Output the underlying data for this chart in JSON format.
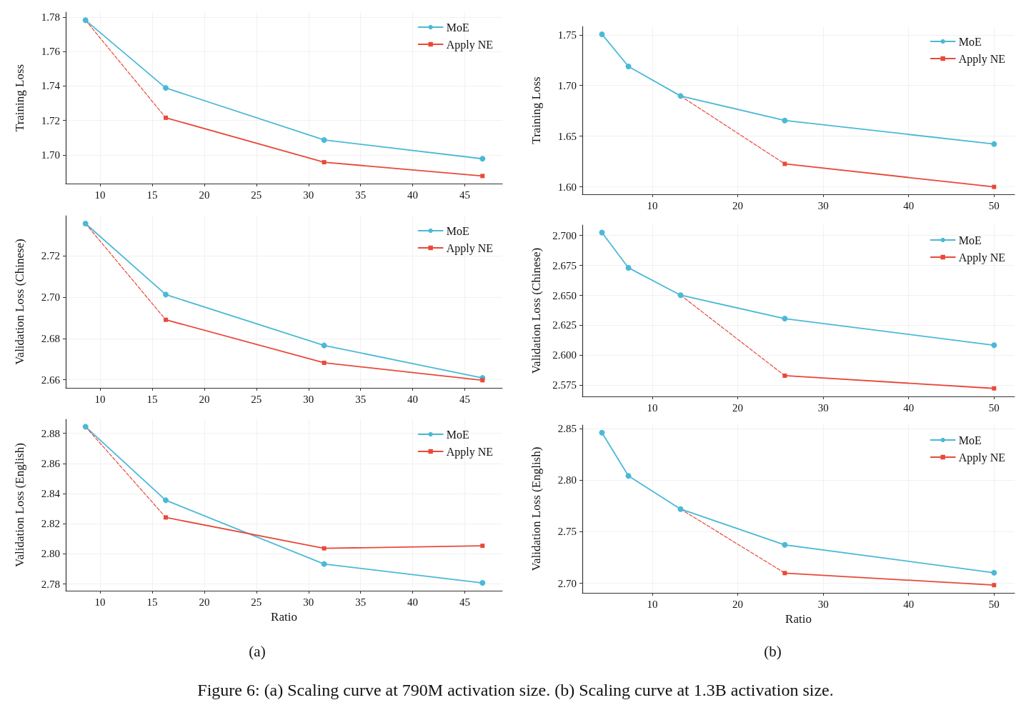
{
  "chart_data": [
    {
      "type": "line",
      "ylabel": "Training Loss",
      "xlim": [
        6.7,
        48.6
      ],
      "xticks": [
        10,
        15,
        20,
        25,
        30,
        35,
        40,
        45
      ],
      "ylim": [
        1.6834,
        1.7829
      ],
      "yticks": [
        {
          "value": 1.7,
          "label": "1.70"
        },
        1.72,
        1.74,
        1.76,
        1.78
      ],
      "grid": true,
      "legend": "top right",
      "series": [
        {
          "name": "MoE",
          "color": "#4bb9d6",
          "marker": "circle",
          "line_style": "solid",
          "x": [
            8.6,
            16.3,
            31.5,
            46.7
          ],
          "values": [
            1.7782,
            1.7389,
            1.7087,
            1.6978
          ]
        },
        {
          "name": "Apply NE",
          "color": "#e8493a",
          "marker": "square",
          "line_style": "solid",
          "x": [
            16.3,
            31.5,
            46.7
          ],
          "values": [
            1.7216,
            1.6958,
            1.6878
          ]
        },
        {
          "color": "#e8493a",
          "marker": "none",
          "line_style": "dashed",
          "x": [
            8.6,
            16.3
          ],
          "values": [
            1.7782,
            1.7216
          ]
        }
      ]
    },
    {
      "type": "line",
      "ylabel": "Training Loss",
      "xlim": [
        1.8,
        52.4
      ],
      "xticks": [
        10,
        20,
        30,
        40,
        50
      ],
      "ylim": [
        1.5927,
        1.7583
      ],
      "yticks": [
        {
          "value": 1.6,
          "label": "1.60"
        },
        1.65,
        {
          "value": 1.7,
          "label": "1.70"
        },
        1.75
      ],
      "grid": true,
      "legend": "top right",
      "series": [
        {
          "name": "MoE",
          "color": "#4bb9d6",
          "marker": "circle",
          "line_style": "solid",
          "x": [
            4.1,
            7.2,
            13.3,
            25.5,
            50
          ],
          "values": [
            1.7506,
            1.7188,
            1.6897,
            1.6655,
            1.6423
          ]
        },
        {
          "name": "Apply NE",
          "color": "#e8493a",
          "marker": "square",
          "line_style": "solid",
          "x": [
            25.5,
            50
          ],
          "values": [
            1.6227,
            1.6
          ]
        },
        {
          "color": "#e8493a",
          "marker": "none",
          "line_style": "dashed",
          "x": [
            13.3,
            25.5
          ],
          "values": [
            1.6897,
            1.6227
          ]
        }
      ]
    },
    {
      "type": "line",
      "ylabel": "Validation Loss (Chinese)",
      "xlim": [
        6.7,
        48.6
      ],
      "xticks": [
        10,
        15,
        20,
        25,
        30,
        35,
        40,
        45
      ],
      "ylim": [
        2.6561,
        2.7393
      ],
      "yticks": [
        2.66,
        2.68,
        {
          "value": 2.7,
          "label": "2.70"
        },
        2.72
      ],
      "grid": true,
      "legend": "top right",
      "series": [
        {
          "name": "MoE",
          "color": "#4bb9d6",
          "marker": "circle",
          "line_style": "solid",
          "x": [
            8.6,
            16.3,
            31.5,
            46.7
          ],
          "values": [
            2.7355,
            2.7012,
            2.6766,
            2.6609
          ]
        },
        {
          "name": "Apply NE",
          "color": "#e8493a",
          "marker": "square",
          "line_style": "solid",
          "x": [
            16.3,
            31.5,
            46.7
          ],
          "values": [
            2.689,
            2.6682,
            2.6598
          ]
        },
        {
          "color": "#e8493a",
          "marker": "none",
          "line_style": "dashed",
          "x": [
            8.6,
            16.3
          ],
          "values": [
            2.7355,
            2.689
          ]
        }
      ]
    },
    {
      "type": "line",
      "ylabel": "Validation Loss (Chinese)",
      "xlim": [
        1.8,
        52.4
      ],
      "xticks": [
        10,
        20,
        30,
        40,
        50
      ],
      "ylim": [
        2.5657,
        2.7087
      ],
      "yticks": [
        2.575,
        {
          "value": 2.6,
          "label": "2.600"
        },
        2.625,
        {
          "value": 2.65,
          "label": "2.650"
        },
        2.675,
        {
          "value": 2.7,
          "label": "2.700"
        }
      ],
      "grid": true,
      "legend": "top right",
      "series": [
        {
          "name": "MoE",
          "color": "#4bb9d6",
          "marker": "circle",
          "line_style": "solid",
          "x": [
            4.1,
            7.2,
            13.3,
            25.5,
            50
          ],
          "values": [
            2.7024,
            2.673,
            2.6502,
            2.6306,
            2.6084
          ]
        },
        {
          "name": "Apply NE",
          "color": "#e8493a",
          "marker": "square",
          "line_style": "solid",
          "x": [
            25.5,
            50
          ],
          "values": [
            2.583,
            2.5724
          ]
        },
        {
          "color": "#e8493a",
          "marker": "none",
          "line_style": "dashed",
          "x": [
            13.3,
            25.5
          ],
          "values": [
            2.6502,
            2.583
          ]
        }
      ]
    },
    {
      "type": "line",
      "xlabel": "Ratio",
      "ylabel": "Validation Loss (English)",
      "xlim": [
        6.7,
        48.6
      ],
      "xticks": [
        10,
        15,
        20,
        25,
        30,
        35,
        40,
        45
      ],
      "ylim": [
        2.7756,
        2.8893
      ],
      "yticks": [
        2.78,
        {
          "value": 2.8,
          "label": "2.80"
        },
        2.82,
        2.84,
        2.86,
        2.88
      ],
      "grid": true,
      "legend": "top right",
      "annotations": [
        "(a)",
        "Figure 6: (a) Scaling curve at 790M activation size. (b) Scaling curve at 1.3B activation size."
      ],
      "series": [
        {
          "name": "MoE",
          "color": "#4bb9d6",
          "marker": "circle",
          "line_style": "solid",
          "x": [
            8.6,
            16.3,
            31.5,
            46.7
          ],
          "values": [
            2.8844,
            2.8356,
            2.7933,
            2.7808
          ]
        },
        {
          "name": "Apply NE",
          "color": "#e8493a",
          "marker": "square",
          "line_style": "solid",
          "x": [
            16.3,
            31.5,
            46.7
          ],
          "values": [
            2.8242,
            2.8037,
            2.8054
          ]
        },
        {
          "color": "#e8493a",
          "marker": "none",
          "line_style": "dashed",
          "x": [
            8.6,
            16.3
          ],
          "values": [
            2.8844,
            2.8242
          ]
        }
      ]
    },
    {
      "type": "line",
      "xlabel": "Ratio",
      "ylabel": "Validation Loss (English)",
      "xlim": [
        1.8,
        52.4
      ],
      "xticks": [
        10,
        20,
        30,
        40,
        50
      ],
      "ylim": [
        2.6907,
        2.8536
      ],
      "yticks": [
        {
          "value": 2.7,
          "label": "2.70"
        },
        2.75,
        {
          "value": 2.8,
          "label": "2.80"
        },
        2.85
      ],
      "grid": true,
      "legend": "top right",
      "annotations": [
        "(b)"
      ],
      "series": [
        {
          "name": "MoE",
          "color": "#4bb9d6",
          "marker": "circle",
          "line_style": "solid",
          "x": [
            4.1,
            7.2,
            13.3,
            25.5,
            50
          ],
          "values": [
            2.8461,
            2.8042,
            2.772,
            2.7373,
            2.7102
          ]
        },
        {
          "name": "Apply NE",
          "color": "#e8493a",
          "marker": "square",
          "line_style": "solid",
          "x": [
            25.5,
            50
          ],
          "values": [
            2.7099,
            2.6982
          ]
        },
        {
          "color": "#e8493a",
          "marker": "none",
          "line_style": "dashed",
          "x": [
            13.3,
            25.5
          ],
          "values": [
            2.772,
            2.7099
          ]
        }
      ]
    }
  ]
}
